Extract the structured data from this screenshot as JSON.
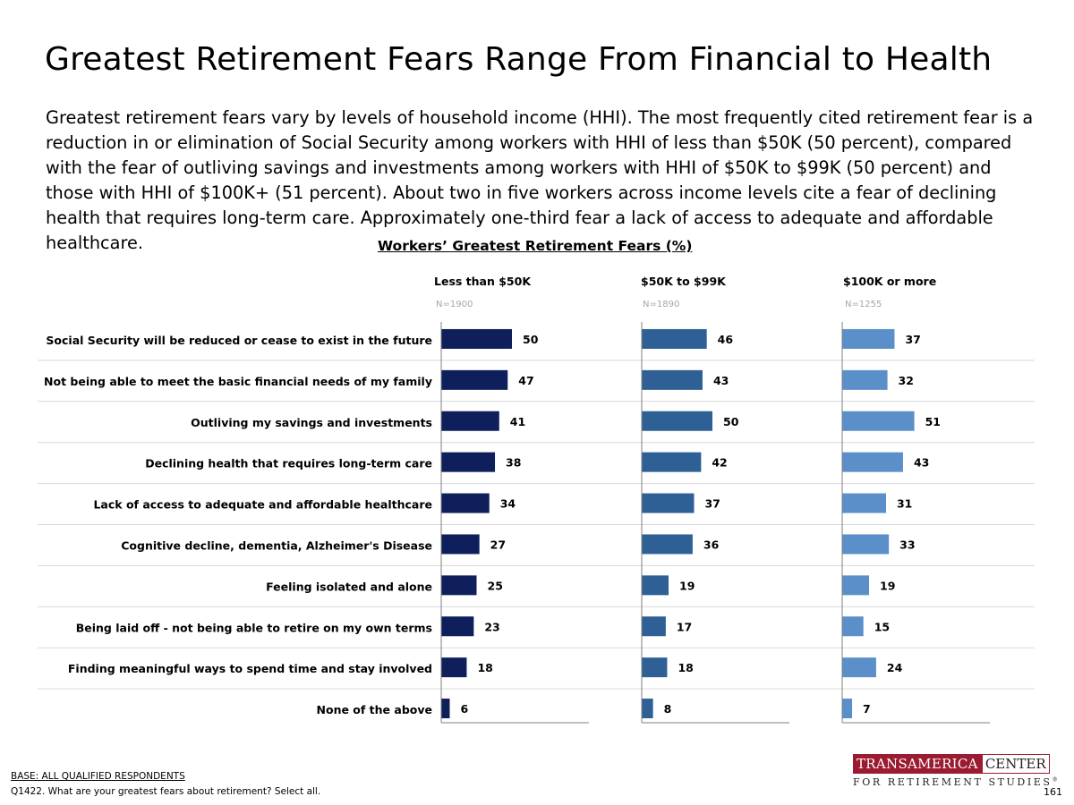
{
  "slide": {
    "title": "Greatest Retirement Fears Range From Financial to Health",
    "body": "Greatest retirement fears vary by levels of household income (HHI). The most frequently cited retirement fear is a reduction in or elimination of Social Security among workers with HHI of less than $50K (50 percent), compared with the fear of outliving savings and investments among workers with HHI of $50K to $99K (50 percent) and those with HHI of $100K+ (51 percent). About two in five workers across income levels cite a fear of declining health that requires long-term care. Approximately one-third fear a lack of access to adequate and affordable healthcare."
  },
  "chart_data": {
    "type": "bar",
    "orientation": "horizontal",
    "title": "Workers’ Greatest Retirement Fears (%)",
    "categories": [
      "Social Security will be reduced or cease to exist in the future",
      "Not being able to meet the basic financial needs of my family",
      "Outliving my savings and investments",
      "Declining health that requires long-term care",
      "Lack of access to adequate and affordable healthcare",
      "Cognitive decline, dementia, Alzheimer's Disease",
      "Feeling isolated and alone",
      "Being laid off - not being able to retire on my own terms",
      "Finding meaningful ways to spend time and stay involved",
      "None of the above"
    ],
    "series": [
      {
        "name": "Less than $50K",
        "n": "N=1900",
        "color": "#0e1f5b",
        "values": [
          50,
          47,
          41,
          38,
          34,
          27,
          25,
          23,
          18,
          6
        ]
      },
      {
        "name": "$50K to $99K",
        "n": "N=1890",
        "color": "#2e6096",
        "values": [
          46,
          43,
          50,
          42,
          37,
          36,
          19,
          17,
          18,
          8
        ]
      },
      {
        "name": "$100K or more",
        "n": "N=1255",
        "color": "#5a8fc9",
        "values": [
          37,
          32,
          51,
          43,
          31,
          33,
          19,
          15,
          24,
          7
        ]
      }
    ],
    "xlim": [
      0,
      100
    ],
    "grid": false,
    "legend": "column headers"
  },
  "footer": {
    "base": "BASE: ALL QUALIFIED RESPONDENTS",
    "question": "Q1422. What are your greatest fears about retirement? Select all.",
    "logo_left": "TRANSAMERICA",
    "logo_right": "CENTER",
    "logo_bottom": "FOR RETIREMENT STUDIES",
    "logo_mark": "®",
    "page_number": "161"
  }
}
